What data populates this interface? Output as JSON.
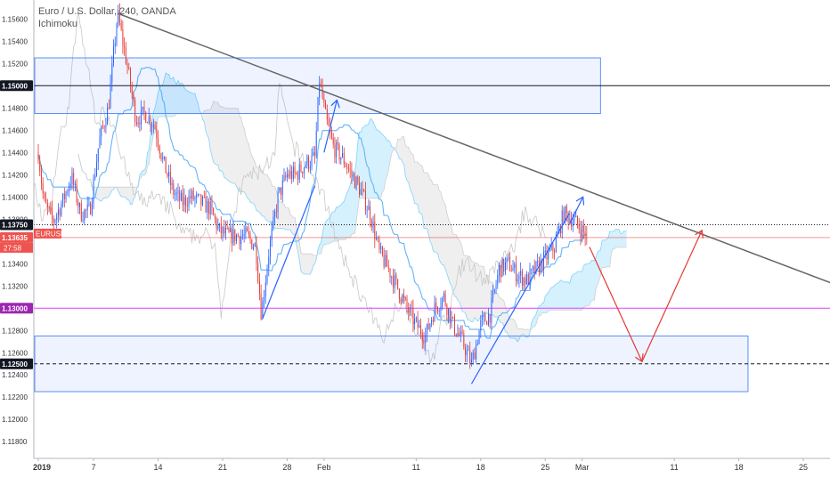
{
  "chart_data": {
    "type": "candlestick",
    "title": "Euro / U.S. Dollar, 240, OANDA",
    "indicator": "Ichimoku",
    "symbol_badge": "EURUSD",
    "countdown": "27:58",
    "y_ticks": [
      "1.15600",
      "1.15400",
      "1.15200",
      "1.15000",
      "1.14800",
      "1.14600",
      "1.14400",
      "1.14200",
      "1.14000",
      "1.13800",
      "1.13600",
      "1.13400",
      "1.13200",
      "1.13000",
      "1.12800",
      "1.12600",
      "1.12400",
      "1.12200",
      "1.12000",
      "1.11800"
    ],
    "y_tick_values": [
      1.156,
      1.154,
      1.152,
      1.15,
      1.148,
      1.146,
      1.144,
      1.142,
      1.14,
      1.138,
      1.136,
      1.134,
      1.132,
      1.13,
      1.128,
      1.126,
      1.124,
      1.122,
      1.12,
      1.118
    ],
    "ylim": [
      1.1165,
      1.1577
    ],
    "x_ticks": [
      "2019",
      "7",
      "14",
      "21",
      "28",
      "Feb",
      "11",
      "18",
      "25",
      "Mar",
      "11",
      "18",
      "25"
    ],
    "x_tick_days": [
      1,
      7,
      14,
      21,
      28,
      32,
      42,
      49,
      56,
      60,
      70,
      77,
      84
    ],
    "price_labels": [
      {
        "text": "1.15000",
        "value": 1.15,
        "color": "#131722"
      },
      {
        "text": "1.13750",
        "value": 1.1375,
        "color": "#131722"
      },
      {
        "text": "1.13635",
        "value": 1.13635,
        "color": "#ef5350"
      },
      {
        "text": "1.13000",
        "value": 1.13,
        "color": "#9c27b0"
      },
      {
        "text": "1.12500",
        "value": 1.125,
        "color": "#131722"
      }
    ],
    "zones": [
      {
        "day_start": 1,
        "day_end": 62,
        "top": 1.1525,
        "bottom": 1.1475
      },
      {
        "day_start": 1,
        "day_end": 78,
        "top": 1.1275,
        "bottom": 1.1225
      }
    ],
    "horizontal_lines": [
      {
        "value": 1.15,
        "color": "#131722",
        "style": "solid"
      },
      {
        "value": 1.1375,
        "color": "#131722",
        "style": "dotted"
      },
      {
        "value": 1.13635,
        "color": "#ef5350",
        "style": "solid"
      },
      {
        "value": 1.13,
        "color": "#e040fb",
        "style": "solid"
      },
      {
        "value": 1.125,
        "color": "#131722",
        "style": "dashed"
      }
    ],
    "trendlines": [
      {
        "from": [
          9.6,
          1.1565
        ],
        "to": [
          88.5,
          1.1318
        ],
        "color": "#666666",
        "width": 1.5,
        "arrow": false
      },
      {
        "from": [
          25.3,
          1.129
        ],
        "to": [
          31,
          1.141
        ],
        "color": "#2962ff",
        "width": 1.2,
        "arrow": false
      },
      {
        "from": [
          32,
          1.144
        ],
        "to": [
          33.4,
          1.1487
        ],
        "color": "#2962ff",
        "width": 1.2,
        "arrow": true
      },
      {
        "from": [
          48,
          1.1232
        ],
        "to": [
          58.6,
          1.1385
        ],
        "color": "#2962ff",
        "width": 1.2,
        "arrow": false
      },
      {
        "from": [
          58.6,
          1.1375
        ],
        "to": [
          60.1,
          1.14
        ],
        "color": "#2962ff",
        "width": 1.2,
        "arrow": true
      },
      {
        "from": [
          60.8,
          1.1355
        ],
        "to": [
          66.5,
          1.1252
        ],
        "color": "#e53935",
        "width": 1.2,
        "arrow": true
      },
      {
        "from": [
          66.5,
          1.1252
        ],
        "to": [
          73,
          1.137
        ],
        "color": "#e53935",
        "width": 1.2,
        "arrow": true
      }
    ],
    "anchors": [
      {
        "day": 1,
        "price": 1.144
      },
      {
        "day": 1.6,
        "price": 1.1395
      },
      {
        "day": 2.6,
        "price": 1.1378
      },
      {
        "day": 3.6,
        "price": 1.1395
      },
      {
        "day": 4.6,
        "price": 1.1418
      },
      {
        "day": 5.6,
        "price": 1.1385
      },
      {
        "day": 6.6,
        "price": 1.1388
      },
      {
        "day": 7.6,
        "price": 1.145
      },
      {
        "day": 8.6,
        "price": 1.148
      },
      {
        "day": 9.6,
        "price": 1.1565
      },
      {
        "day": 10.6,
        "price": 1.152
      },
      {
        "day": 11.6,
        "price": 1.147
      },
      {
        "day": 12.6,
        "price": 1.1475
      },
      {
        "day": 13.6,
        "price": 1.1465
      },
      {
        "day": 14.6,
        "price": 1.143
      },
      {
        "day": 15.6,
        "price": 1.1405
      },
      {
        "day": 16.6,
        "price": 1.1395
      },
      {
        "day": 17.6,
        "price": 1.14
      },
      {
        "day": 18.6,
        "price": 1.1395
      },
      {
        "day": 19.6,
        "price": 1.139
      },
      {
        "day": 20.6,
        "price": 1.137
      },
      {
        "day": 21.6,
        "price": 1.1365
      },
      {
        "day": 22.6,
        "price": 1.1365
      },
      {
        "day": 23.6,
        "price": 1.1365
      },
      {
        "day": 24.6,
        "price": 1.1355
      },
      {
        "day": 25.2,
        "price": 1.1295
      },
      {
        "day": 26,
        "price": 1.135
      },
      {
        "day": 27,
        "price": 1.14
      },
      {
        "day": 28,
        "price": 1.142
      },
      {
        "day": 29,
        "price": 1.142
      },
      {
        "day": 30,
        "price": 1.143
      },
      {
        "day": 31,
        "price": 1.1435
      },
      {
        "day": 31.5,
        "price": 1.1505
      },
      {
        "day": 32.2,
        "price": 1.147
      },
      {
        "day": 33,
        "price": 1.1445
      },
      {
        "day": 34,
        "price": 1.1435
      },
      {
        "day": 35,
        "price": 1.142
      },
      {
        "day": 36,
        "price": 1.1405
      },
      {
        "day": 37,
        "price": 1.1385
      },
      {
        "day": 38,
        "price": 1.135
      },
      {
        "day": 39,
        "price": 1.1335
      },
      {
        "day": 40,
        "price": 1.1318
      },
      {
        "day": 41,
        "price": 1.13
      },
      {
        "day": 42,
        "price": 1.1285
      },
      {
        "day": 43,
        "price": 1.1275
      },
      {
        "day": 44,
        "price": 1.13
      },
      {
        "day": 45,
        "price": 1.131
      },
      {
        "day": 46,
        "price": 1.1285
      },
      {
        "day": 47,
        "price": 1.127
      },
      {
        "day": 48,
        "price": 1.125
      },
      {
        "day": 49,
        "price": 1.1285
      },
      {
        "day": 50,
        "price": 1.1295
      },
      {
        "day": 51,
        "price": 1.1335
      },
      {
        "day": 52,
        "price": 1.134
      },
      {
        "day": 53,
        "price": 1.133
      },
      {
        "day": 54,
        "price": 1.1325
      },
      {
        "day": 55,
        "price": 1.1335
      },
      {
        "day": 56,
        "price": 1.1345
      },
      {
        "day": 57,
        "price": 1.1355
      },
      {
        "day": 58,
        "price": 1.1385
      },
      {
        "day": 59,
        "price": 1.138
      },
      {
        "day": 60,
        "price": 1.137
      },
      {
        "day": 60.6,
        "price": 1.13635
      }
    ]
  }
}
